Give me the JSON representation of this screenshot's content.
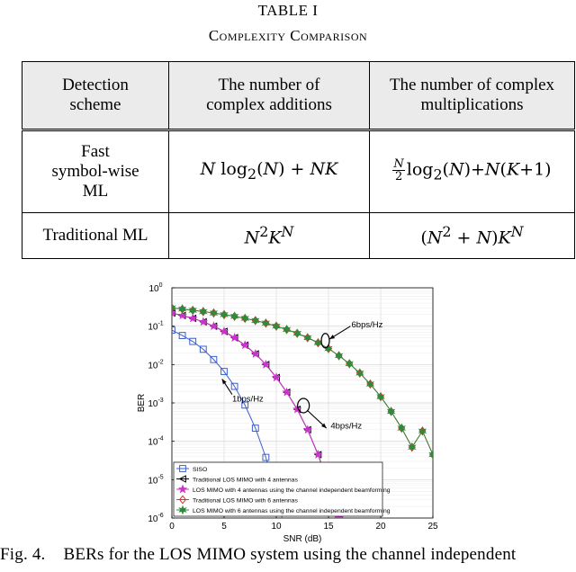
{
  "table": {
    "title": "TABLE I",
    "subtitle": "Complexity Comparison",
    "headers": [
      "Detection scheme",
      "The number of complex additions",
      "The number of complex multiplications"
    ],
    "header_lines": [
      [
        "Detection",
        "scheme"
      ],
      [
        "The number of",
        "complex additions"
      ],
      [
        "The number of complex",
        "multiplications"
      ]
    ],
    "rows": [
      {
        "scheme_lines": [
          "Fast",
          "symbol-wise",
          "ML"
        ],
        "additions": "N log2(N) + NK",
        "multiplications": "N/2 log2(N)+N(K+1)"
      },
      {
        "scheme": "Traditional ML",
        "additions": "N^2 K^N",
        "multiplications": "(N^2 + N)K^N"
      }
    ]
  },
  "chart_data": {
    "type": "line",
    "xlabel": "SNR (dB)",
    "ylabel": "BER",
    "xlim": [
      0,
      25
    ],
    "ylim": [
      1e-06,
      1
    ],
    "yscale": "log",
    "x_ticks": [
      0,
      5,
      10,
      15,
      20,
      25
    ],
    "y_ticks": [
      "10^0",
      "10^-1",
      "10^-2",
      "10^-3",
      "10^-4",
      "10^-5",
      "10^-6"
    ],
    "grid": true,
    "legend_position": "bottom-left",
    "series": [
      {
        "name": "SISO",
        "color": "#3a5fcd",
        "marker": "square",
        "x": [
          0,
          1,
          2,
          3,
          4,
          5,
          6,
          7,
          8,
          9,
          10,
          11
        ],
        "y": [
          0.079,
          0.057,
          0.04,
          0.025,
          0.0135,
          0.0066,
          0.0027,
          0.00088,
          0.00022,
          3.8e-05,
          4.5e-06,
          3e-07
        ]
      },
      {
        "name": "Traditional LOS MIMO with 4 antennas",
        "color": "#000000",
        "marker": "triangle-left",
        "x": [
          0,
          1,
          2,
          3,
          4,
          5,
          6,
          7,
          8,
          9,
          10,
          11,
          12,
          13,
          14,
          15,
          16
        ],
        "y": [
          0.22,
          0.19,
          0.16,
          0.13,
          0.1,
          0.073,
          0.05,
          0.032,
          0.019,
          0.01,
          0.0046,
          0.0019,
          0.00068,
          0.0002,
          4.5e-05,
          8e-06,
          1e-06
        ]
      },
      {
        "name": "LOS MIMO with 4 antennas using the channel independent beamforming",
        "color": "#cc33cc",
        "marker": "star",
        "x": [
          0,
          1,
          2,
          3,
          4,
          5,
          6,
          7,
          8,
          9,
          10,
          11,
          12,
          13,
          14,
          15,
          16
        ],
        "y": [
          0.22,
          0.19,
          0.16,
          0.13,
          0.1,
          0.073,
          0.05,
          0.032,
          0.019,
          0.01,
          0.0046,
          0.0019,
          0.00068,
          0.0002,
          4.5e-05,
          8e-06,
          1e-06
        ]
      },
      {
        "name": "Traditional LOS MIMO with 6 antennas",
        "color": "#e03030",
        "marker": "diamond",
        "x": [
          0,
          1,
          2,
          3,
          4,
          5,
          6,
          7,
          8,
          9,
          10,
          11,
          12,
          13,
          14,
          15,
          16,
          17,
          18,
          19,
          20,
          21,
          22,
          23,
          24,
          25
        ],
        "y": [
          0.3,
          0.28,
          0.26,
          0.24,
          0.22,
          0.2,
          0.18,
          0.16,
          0.14,
          0.12,
          0.1,
          0.082,
          0.065,
          0.05,
          0.037,
          0.026,
          0.017,
          0.0105,
          0.006,
          0.0031,
          0.00145,
          0.0006,
          0.00022,
          7e-05,
          0.000185,
          4.5e-05
        ]
      },
      {
        "name": "LOS MIMO with 6 antennas using the channel independent beamforming",
        "color": "#2e8b3a",
        "marker": "hexagram",
        "x": [
          0,
          1,
          2,
          3,
          4,
          5,
          6,
          7,
          8,
          9,
          10,
          11,
          12,
          13,
          14,
          15,
          16,
          17,
          18,
          19,
          20,
          21,
          22,
          23,
          24,
          25
        ],
        "y": [
          0.3,
          0.28,
          0.26,
          0.24,
          0.22,
          0.2,
          0.18,
          0.16,
          0.14,
          0.12,
          0.1,
          0.082,
          0.065,
          0.05,
          0.037,
          0.026,
          0.017,
          0.0105,
          0.006,
          0.0031,
          0.00145,
          0.0006,
          0.00022,
          7e-05,
          0.000185,
          4.5e-05
        ]
      }
    ],
    "annotations": [
      {
        "text": "1bps/Hz",
        "x": 5.6,
        "y": 0.0012
      },
      {
        "text": "4bps/Hz",
        "x": 15.2,
        "y": 0.00025
      },
      {
        "text": "6bps/Hz",
        "x": 17.2,
        "y": 0.11
      }
    ]
  },
  "caption": {
    "label": "Fig. 4.",
    "text": "BERs for the LOS MIMO system using the channel independent"
  }
}
